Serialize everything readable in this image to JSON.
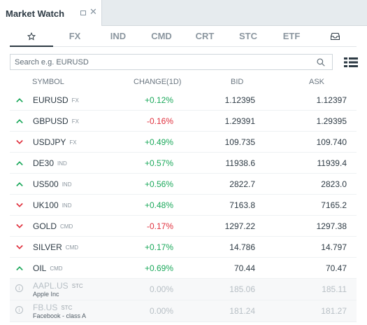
{
  "window": {
    "title": "Market Watch"
  },
  "tabs": [
    {
      "label": "☆",
      "active": true
    },
    {
      "label": "FX"
    },
    {
      "label": "IND"
    },
    {
      "label": "CMD"
    },
    {
      "label": "CRT"
    },
    {
      "label": "STC"
    },
    {
      "label": "ETF"
    },
    {
      "label": "inbox-icon"
    }
  ],
  "search": {
    "placeholder": "Search e.g. EURUSD"
  },
  "columns": {
    "symbol": "SYMBOL",
    "change": "CHANGE(1D)",
    "bid": "BID",
    "ask": "ASK"
  },
  "colors": {
    "up": "#1aa85a",
    "down": "#e0303d"
  },
  "rows": [
    {
      "symbol": "EURUSD",
      "class": "FX",
      "direction": "up",
      "change": "+0.12%",
      "change_sign": "pos",
      "bid": "1.12395",
      "ask": "1.12397"
    },
    {
      "symbol": "GBPUSD",
      "class": "FX",
      "direction": "up",
      "change": "-0.16%",
      "change_sign": "neg",
      "bid": "1.29391",
      "ask": "1.29395"
    },
    {
      "symbol": "USDJPY",
      "class": "FX",
      "direction": "down",
      "change": "+0.49%",
      "change_sign": "pos",
      "bid": "109.735",
      "ask": "109.740"
    },
    {
      "symbol": "DE30",
      "class": "IND",
      "direction": "up",
      "change": "+0.57%",
      "change_sign": "pos",
      "bid": "11938.6",
      "ask": "11939.4"
    },
    {
      "symbol": "US500",
      "class": "IND",
      "direction": "up",
      "change": "+0.56%",
      "change_sign": "pos",
      "bid": "2822.7",
      "ask": "2823.0"
    },
    {
      "symbol": "UK100",
      "class": "IND",
      "direction": "down",
      "change": "+0.48%",
      "change_sign": "pos",
      "bid": "7163.8",
      "ask": "7165.2"
    },
    {
      "symbol": "GOLD",
      "class": "CMD",
      "direction": "down",
      "change": "-0.17%",
      "change_sign": "neg",
      "bid": "1297.22",
      "ask": "1297.38"
    },
    {
      "symbol": "SILVER",
      "class": "CMD",
      "direction": "down",
      "change": "+0.17%",
      "change_sign": "pos",
      "bid": "14.786",
      "ask": "14.797"
    },
    {
      "symbol": "OIL",
      "class": "CMD",
      "direction": "up",
      "change": "+0.69%",
      "change_sign": "pos",
      "bid": "70.44",
      "ask": "70.47"
    }
  ],
  "disabled_rows": [
    {
      "symbol": "AAPL.US",
      "class": "STC",
      "subtitle": "Apple Inc",
      "change": "0.00%",
      "bid": "185.06",
      "ask": "185.11"
    },
    {
      "symbol": "FB.US",
      "class": "STC",
      "subtitle": "Facebook - class A",
      "change": "0.00%",
      "bid": "181.24",
      "ask": "181.27"
    }
  ]
}
